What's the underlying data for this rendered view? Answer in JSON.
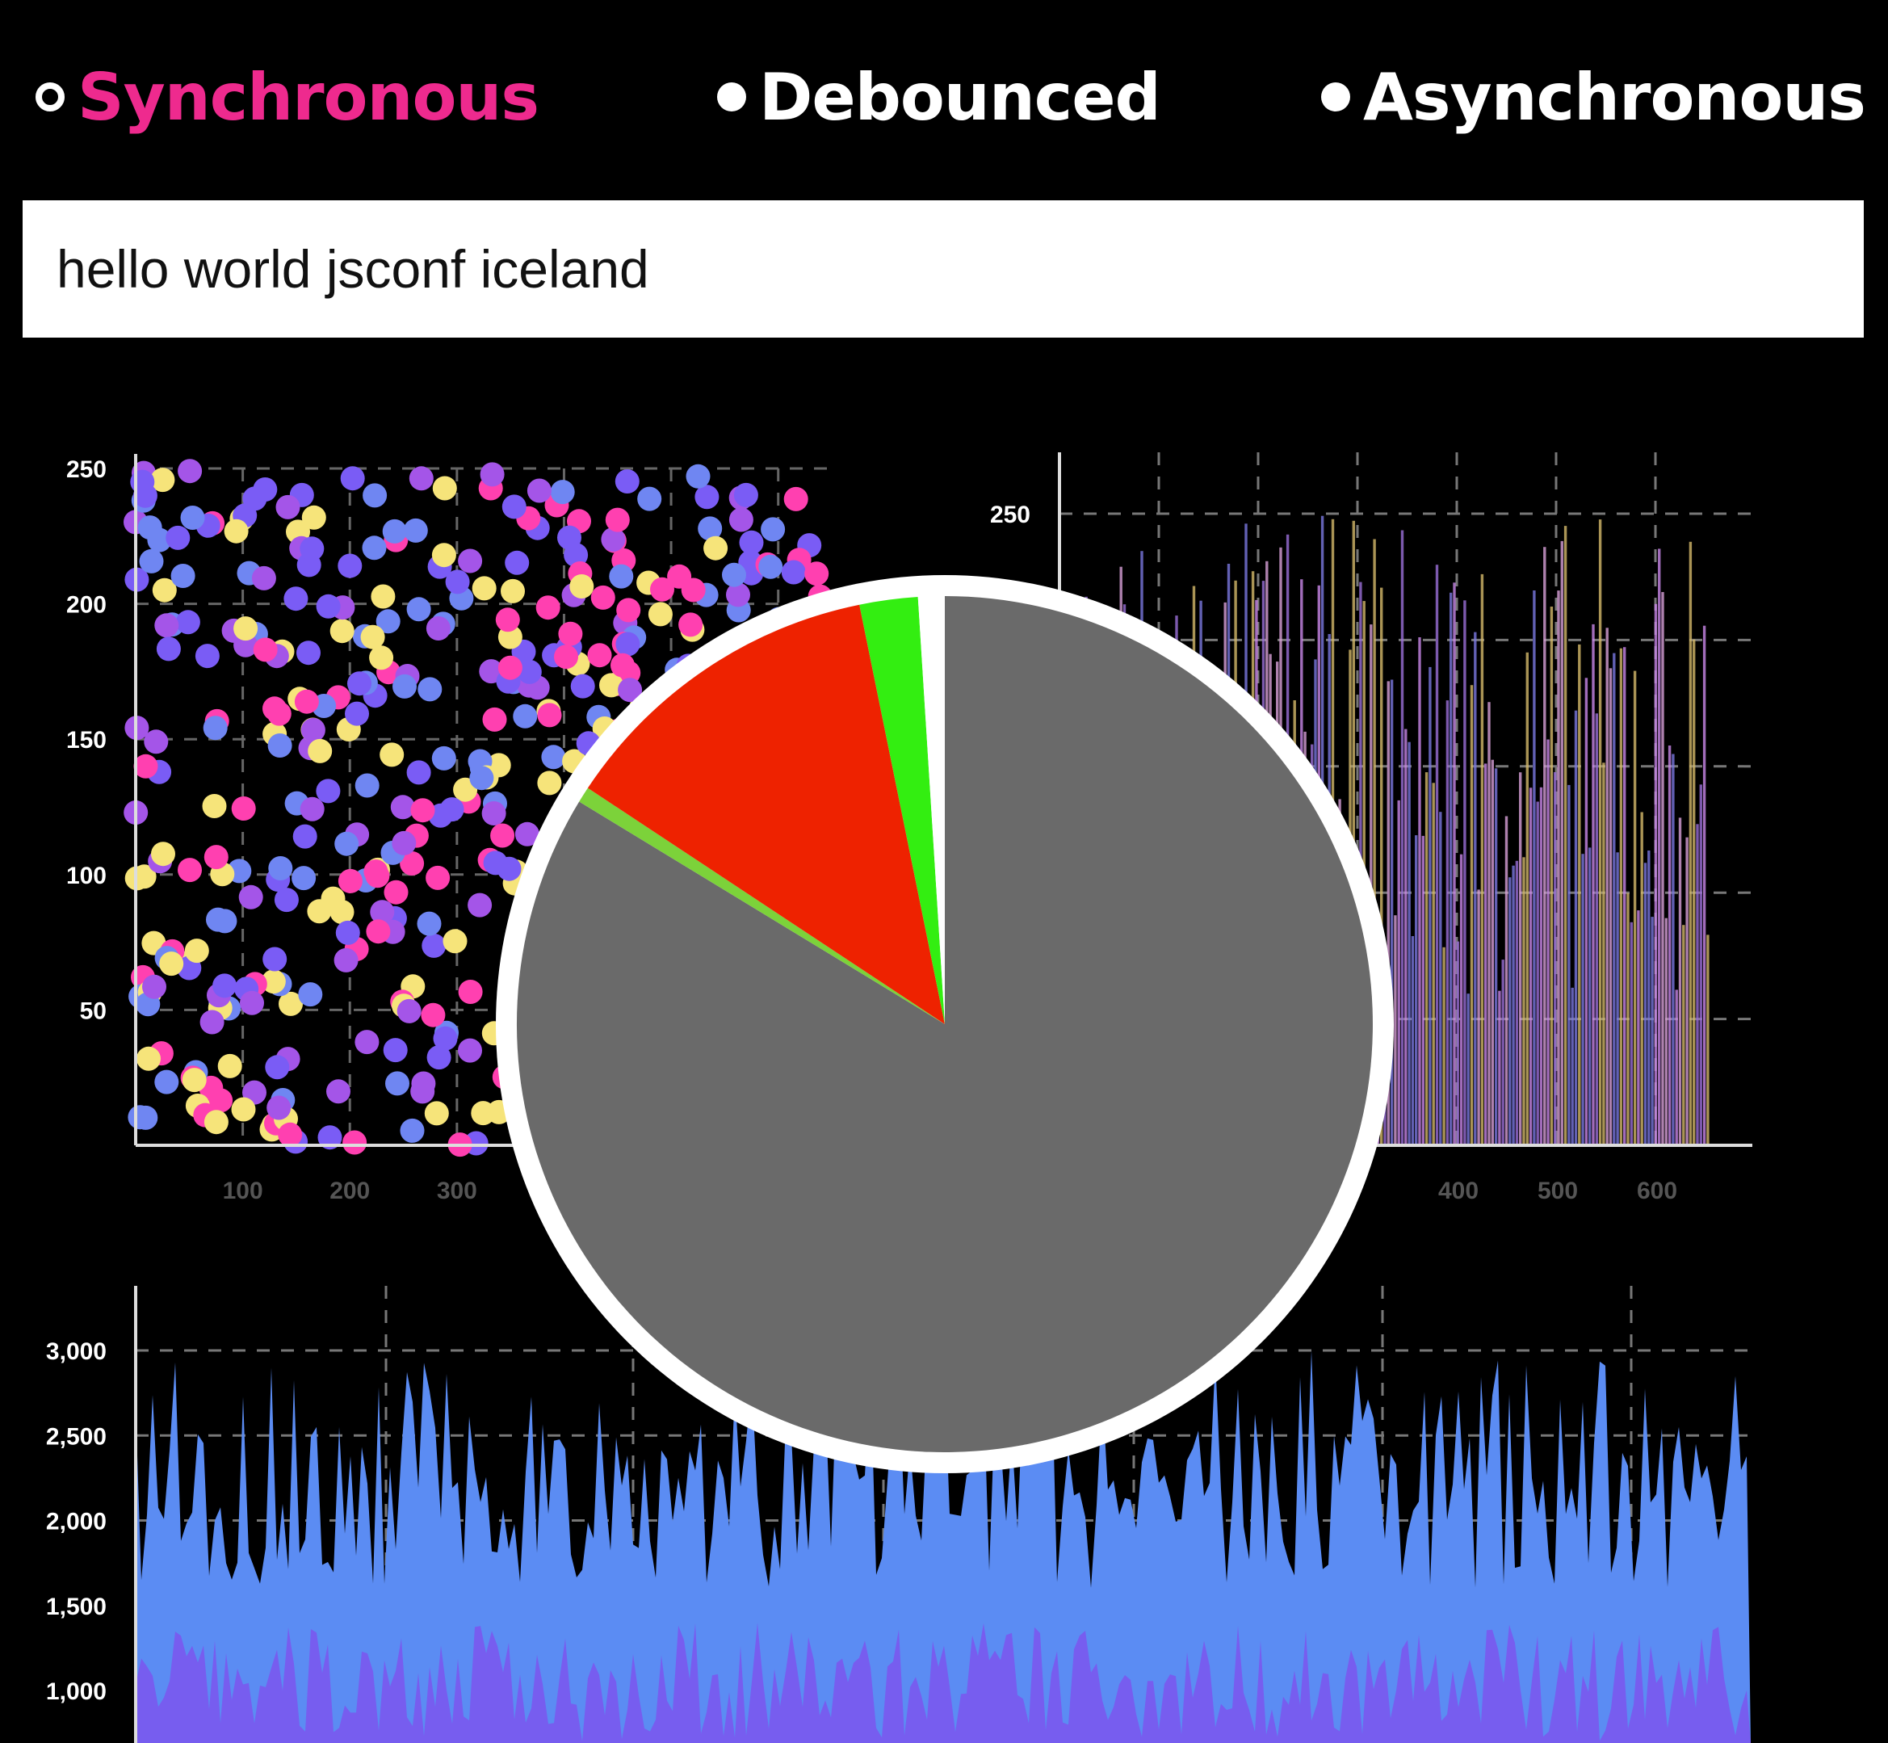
{
  "mode_selector": {
    "options": [
      {
        "label": "Synchronous",
        "selected": true
      },
      {
        "label": "Debounced",
        "selected": false
      },
      {
        "label": "Asynchronous",
        "selected": false
      }
    ],
    "active_color": "#ee2a8e"
  },
  "text_input": {
    "value": "hello world jsconf iceland"
  },
  "chart_data": [
    {
      "type": "scatter",
      "name_hint": "scatter-chart",
      "ylim": [
        0,
        250
      ],
      "xlim": [
        0,
        650
      ],
      "y_ticks": [
        "250",
        "200",
        "150",
        "100",
        "50"
      ],
      "x_ticks": [
        "100",
        "200",
        "300"
      ],
      "point_colors": [
        "#ff40b0",
        "#a455e8",
        "#f6e47a",
        "#6f86f2",
        "#7a5cf5"
      ],
      "approx_point_count": 520
    },
    {
      "type": "bar",
      "name_hint": "bar-chart",
      "ylim": [
        0,
        250
      ],
      "y_ticks": [
        "250"
      ],
      "x_ticks": [
        "400",
        "500",
        "600"
      ],
      "bar_colors": [
        "#c987e8",
        "#9b6fd8",
        "#d8a0d8",
        "#7b78e0",
        "#d4b96a"
      ]
    },
    {
      "type": "area",
      "name_hint": "area-chart",
      "ylim": [
        0,
        3000
      ],
      "y_ticks": [
        "3,000",
        "2,500",
        "2,000",
        "1,500",
        "1,000"
      ],
      "series_colors": [
        "#5b8cf3",
        "#7a58ee"
      ]
    },
    {
      "type": "pie",
      "name_hint": "timing-pie",
      "slices": [
        {
          "value": 83.7,
          "color": "#6a6a6a"
        },
        {
          "value": 0.6,
          "color": "#7cd23a"
        },
        {
          "value": 12.5,
          "color": "#ee2200"
        },
        {
          "value": 2.2,
          "color": "#33ee11"
        },
        {
          "value": 1.0,
          "color": "#ffffff"
        }
      ]
    }
  ]
}
